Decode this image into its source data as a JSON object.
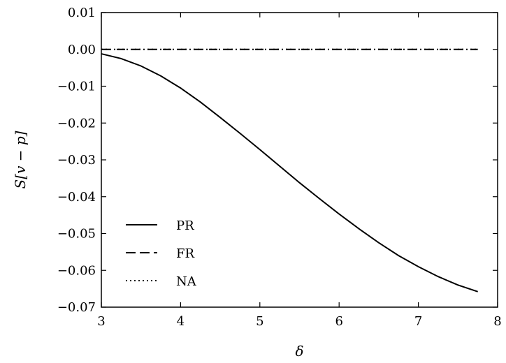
{
  "chart_data": {
    "type": "line",
    "xlabel": "δ",
    "ylabel": "S[v − p]",
    "xlim": [
      3,
      8
    ],
    "ylim": [
      -0.07,
      0.01
    ],
    "x_ticks": [
      3,
      4,
      5,
      6,
      7,
      8
    ],
    "x_tick_labels": [
      "3",
      "4",
      "5",
      "6",
      "7",
      "8"
    ],
    "y_ticks": [
      0.01,
      0.0,
      -0.01,
      -0.02,
      -0.03,
      -0.04,
      -0.05,
      -0.06,
      -0.07
    ],
    "y_tick_labels": [
      "0.01",
      "0.00",
      "−0.01",
      "−0.02",
      "−0.03",
      "−0.04",
      "−0.05",
      "−0.06",
      "−0.07"
    ],
    "grid": false,
    "legend_position": "lower-left",
    "series": [
      {
        "name": "PR",
        "style": "solid",
        "color": "#000000",
        "x": [
          3.0,
          3.25,
          3.5,
          3.75,
          4.0,
          4.25,
          4.5,
          4.75,
          5.0,
          5.25,
          5.5,
          5.75,
          6.0,
          6.25,
          6.5,
          6.75,
          7.0,
          7.25,
          7.5,
          7.75
        ],
        "y": [
          -0.0012,
          -0.0025,
          -0.0045,
          -0.0072,
          -0.0105,
          -0.0143,
          -0.0185,
          -0.0228,
          -0.0272,
          -0.0317,
          -0.0362,
          -0.0405,
          -0.0447,
          -0.0487,
          -0.0525,
          -0.056,
          -0.059,
          -0.0617,
          -0.064,
          -0.0658
        ]
      },
      {
        "name": "FR",
        "style": "dashed",
        "color": "#000000",
        "x": [
          3.0,
          7.75
        ],
        "y": [
          0.0,
          0.0
        ]
      },
      {
        "name": "NA",
        "style": "dotted",
        "color": "#000000",
        "x": [
          3.0,
          7.75
        ],
        "y": [
          0.0,
          0.0
        ]
      }
    ]
  }
}
